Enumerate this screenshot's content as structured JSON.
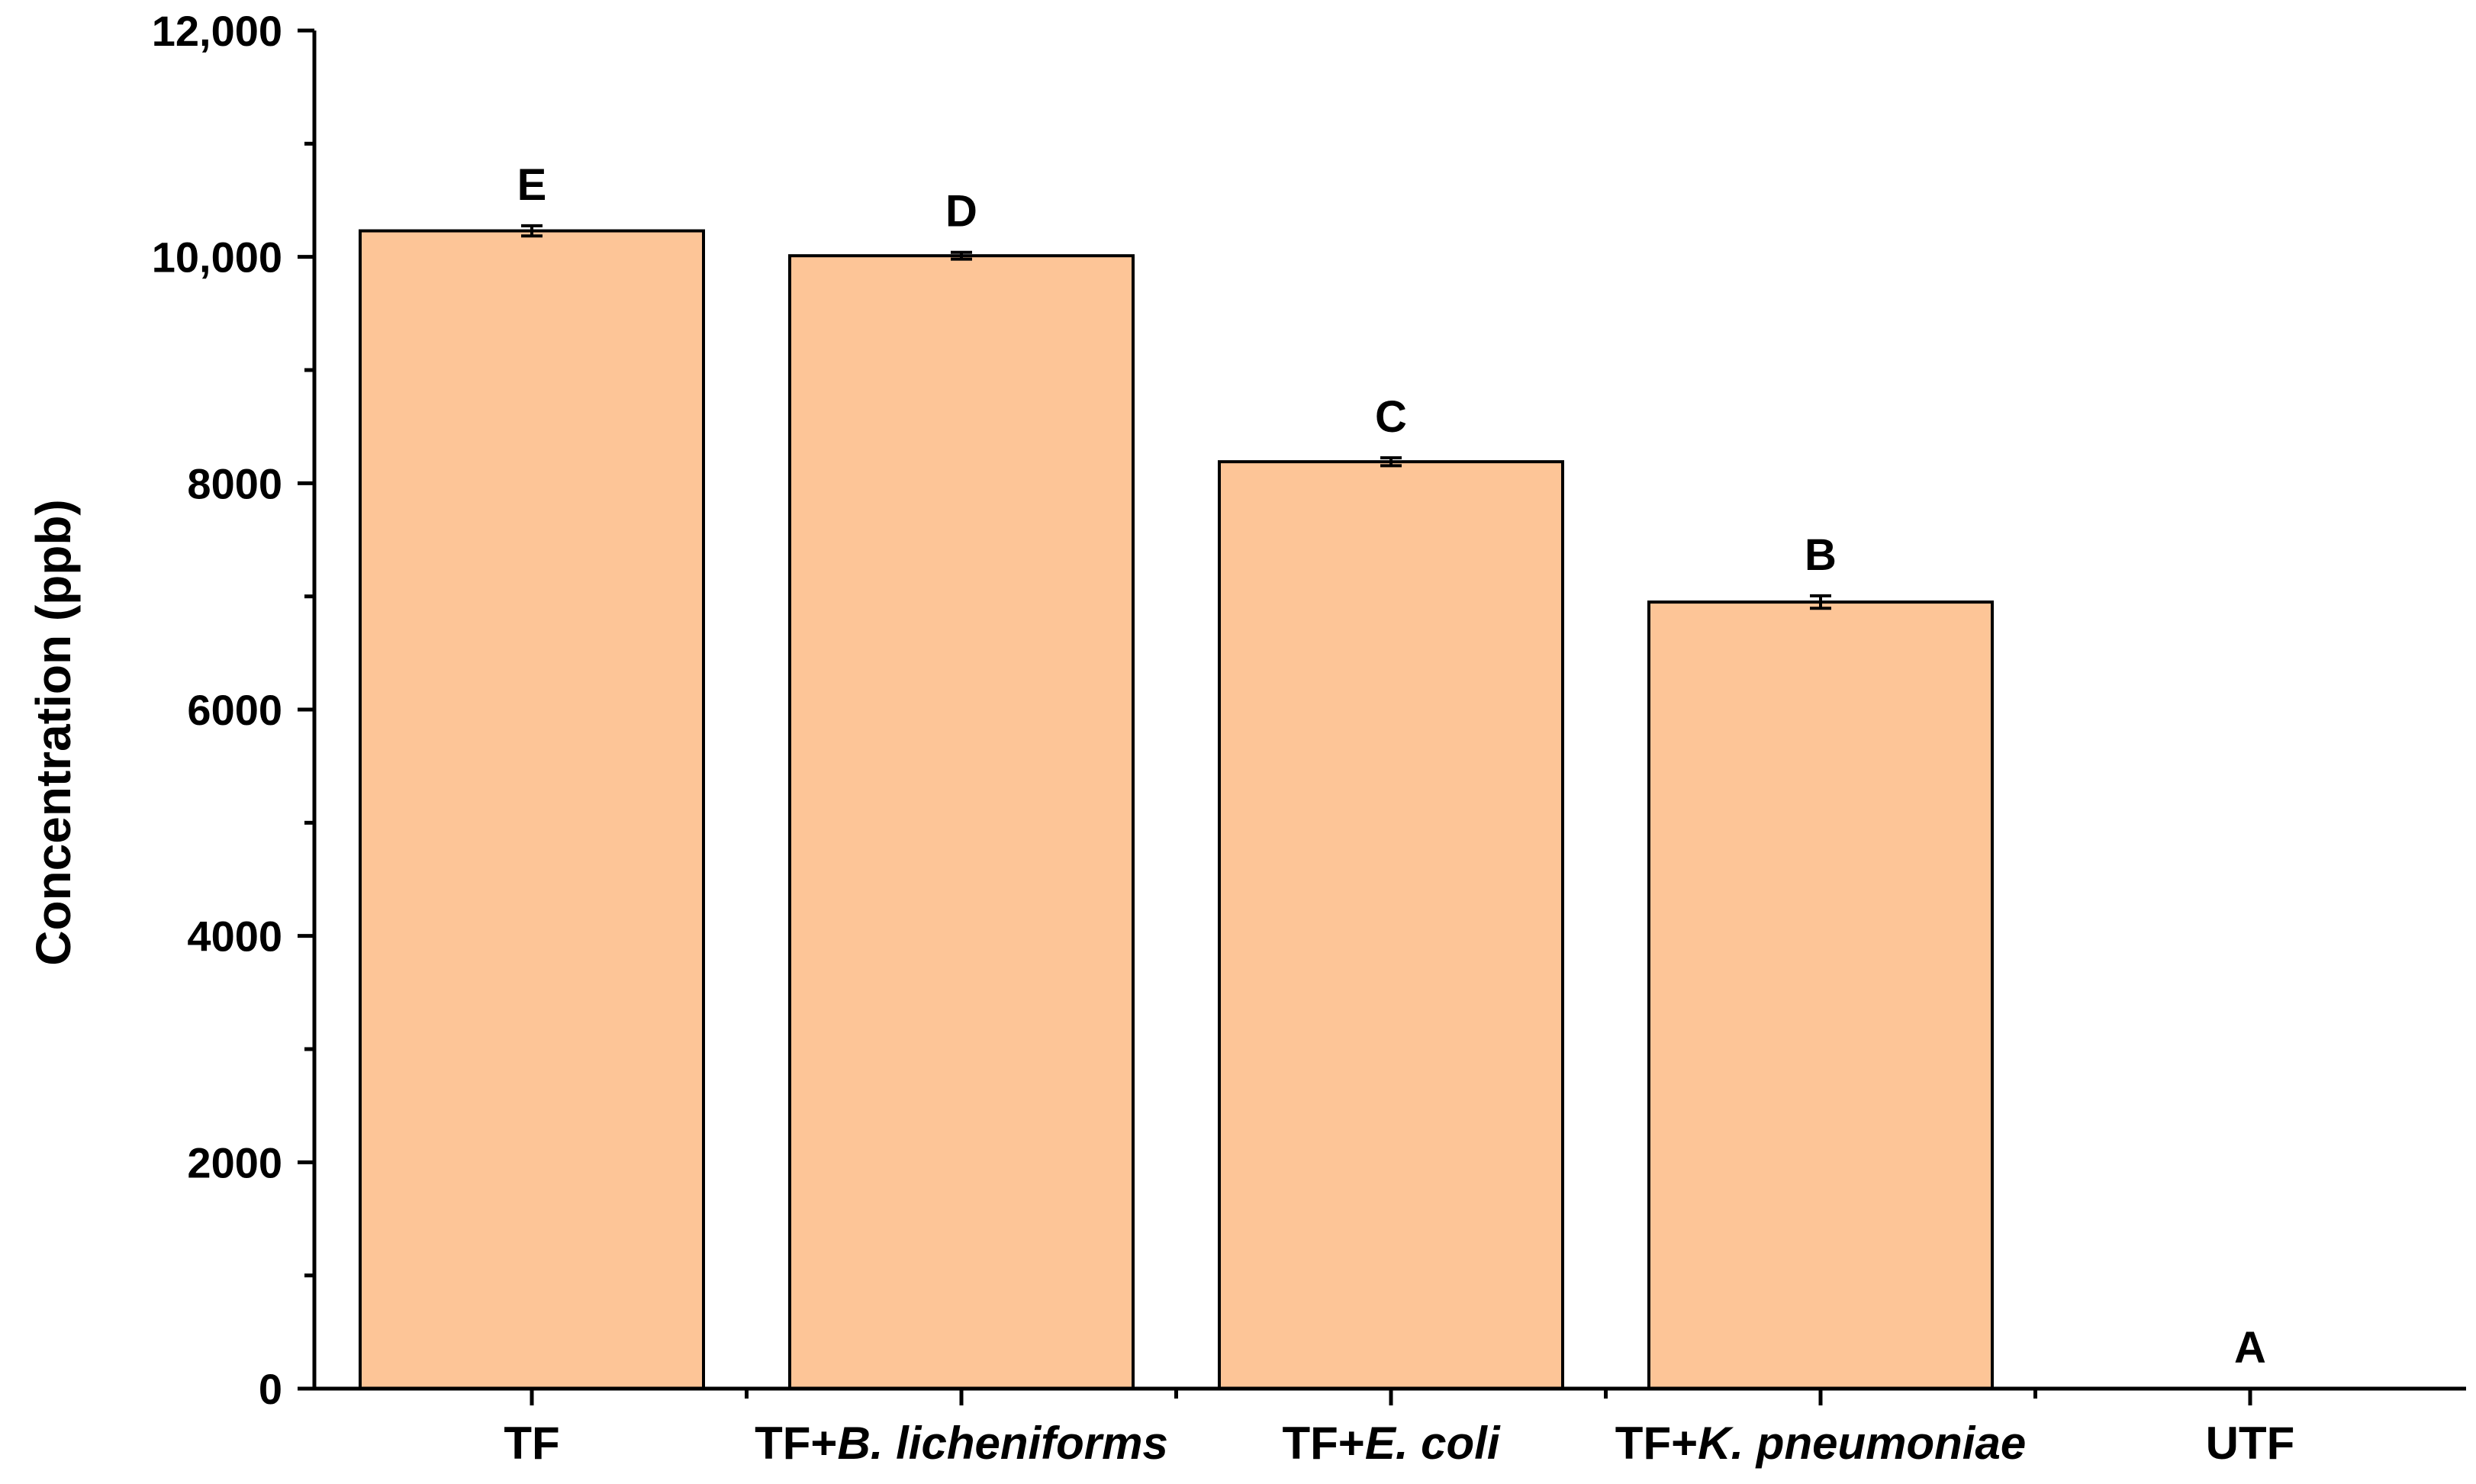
{
  "chart_data": {
    "type": "bar",
    "title": "",
    "xlabel": "",
    "ylabel": "Concentration (ppb)",
    "ylim": [
      0,
      12000
    ],
    "y_ticks": [
      {
        "value": 0,
        "label": "0"
      },
      {
        "value": 2000,
        "label": "2000"
      },
      {
        "value": 4000,
        "label": "4000"
      },
      {
        "value": 6000,
        "label": "6000"
      },
      {
        "value": 8000,
        "label": "8000"
      },
      {
        "value": 10000,
        "label": "10,000"
      },
      {
        "value": 12000,
        "label": "12,000"
      }
    ],
    "categories": [
      {
        "prefix": "TF",
        "italic": ""
      },
      {
        "prefix": "TF+",
        "italic": "B. licheniforms"
      },
      {
        "prefix": "TF+",
        "italic": "E. coli"
      },
      {
        "prefix": "TF+",
        "italic": "K. pneumoniae"
      },
      {
        "prefix": "UTF",
        "italic": ""
      }
    ],
    "values": [
      10230,
      10010,
      8190,
      6950,
      0
    ],
    "errors": [
      45,
      30,
      35,
      55,
      0
    ],
    "significance_letters": [
      "E",
      "D",
      "C",
      "B",
      "A"
    ],
    "bar_color": "#FDC597",
    "grid": false,
    "legend": "none"
  }
}
